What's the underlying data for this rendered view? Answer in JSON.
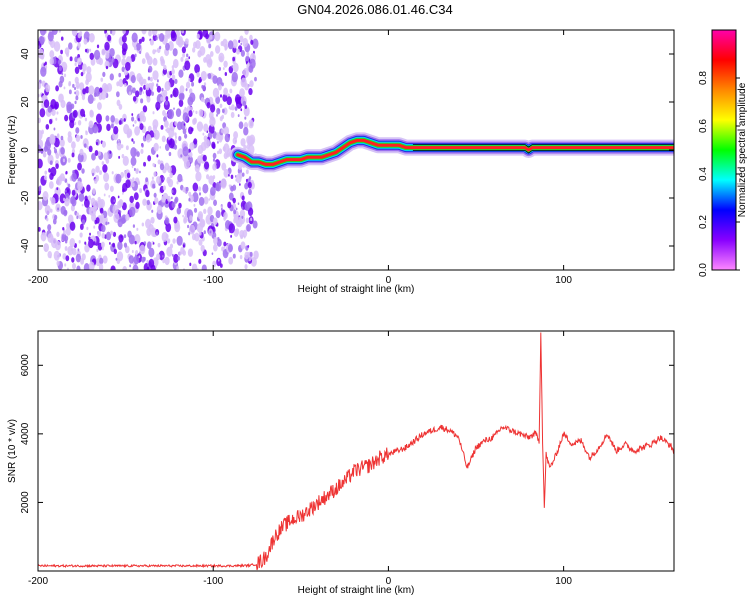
{
  "title": "GN04.2026.086.01.46.C34",
  "chart_data": [
    {
      "type": "heatmap",
      "name": "spectrogram",
      "xlabel": "Height of straight line (km)",
      "ylabel": "Frequency (Hz)",
      "xlim": [
        -200,
        163
      ],
      "ylim": [
        -50,
        50
      ],
      "xticks": [
        -200,
        -100,
        0,
        100
      ],
      "yticks": [
        -40,
        -20,
        0,
        20,
        40
      ],
      "colorbar": {
        "label": "Normalized spectral amplitude",
        "range": [
          0,
          1
        ],
        "ticks": [
          0.0,
          0.2,
          0.4,
          0.6,
          0.8
        ],
        "tick_labels": [
          "0.0",
          "0.2",
          "0.4",
          "0.6",
          "0.8"
        ],
        "colors": [
          "#ff88ff",
          "#8800ff",
          "#0000ff",
          "#00ffff",
          "#00ff00",
          "#ffff00",
          "#ff8800",
          "#ff0000",
          "#ff00aa"
        ]
      },
      "noise_region_x": [
        -200,
        -80
      ],
      "ridge": {
        "x": [
          -86,
          -82,
          -78,
          -74,
          -70,
          -66,
          -62,
          -58,
          -54,
          -50,
          -46,
          -42,
          -38,
          -34,
          -30,
          -26,
          -22,
          -18,
          -14,
          -10,
          -6,
          -2,
          2,
          6,
          10,
          14,
          30,
          50,
          70,
          78,
          80,
          82,
          90,
          110,
          130,
          150,
          163
        ],
        "y": [
          -2,
          -3,
          -5,
          -5,
          -6,
          -6,
          -5,
          -4,
          -4,
          -4,
          -3,
          -3,
          -3,
          -2,
          -1,
          1,
          3,
          4,
          4,
          3,
          2,
          2,
          2,
          2,
          1,
          1,
          1,
          1,
          1,
          1,
          0,
          1,
          1,
          1,
          1,
          1,
          1
        ]
      }
    },
    {
      "type": "line",
      "name": "snr",
      "xlabel": "Height of straight line (km)",
      "ylabel": "SNR (10 * v/v)",
      "xlim": [
        -200,
        163
      ],
      "ylim": [
        0,
        7000
      ],
      "xticks": [
        -200,
        -100,
        0,
        100
      ],
      "yticks": [
        2000,
        4000,
        6000
      ],
      "color": "#ee3333",
      "x": [
        -200,
        -180,
        -160,
        -140,
        -120,
        -100,
        -90,
        -80,
        -75,
        -70,
        -65,
        -60,
        -55,
        -50,
        -45,
        -40,
        -35,
        -30,
        -25,
        -20,
        -15,
        -10,
        -5,
        0,
        5,
        10,
        15,
        20,
        25,
        30,
        35,
        40,
        45,
        50,
        55,
        60,
        65,
        70,
        75,
        80,
        84,
        86,
        87,
        88,
        89,
        90,
        92,
        95,
        100,
        105,
        110,
        115,
        120,
        125,
        130,
        135,
        140,
        145,
        150,
        155,
        160,
        163
      ],
      "y": [
        150,
        150,
        150,
        150,
        150,
        150,
        150,
        160,
        200,
        400,
        1000,
        1300,
        1500,
        1600,
        1800,
        2000,
        2200,
        2400,
        2600,
        2900,
        3000,
        3100,
        3300,
        3400,
        3500,
        3600,
        3800,
        4000,
        4100,
        4200,
        4100,
        3900,
        3000,
        3600,
        3800,
        3900,
        4200,
        4100,
        4000,
        3900,
        4000,
        3800,
        7000,
        3800,
        1800,
        3400,
        3000,
        3300,
        4000,
        3700,
        3800,
        3300,
        3600,
        4000,
        3500,
        3700,
        3500,
        3600,
        3700,
        3900,
        3700,
        3500
      ]
    }
  ]
}
